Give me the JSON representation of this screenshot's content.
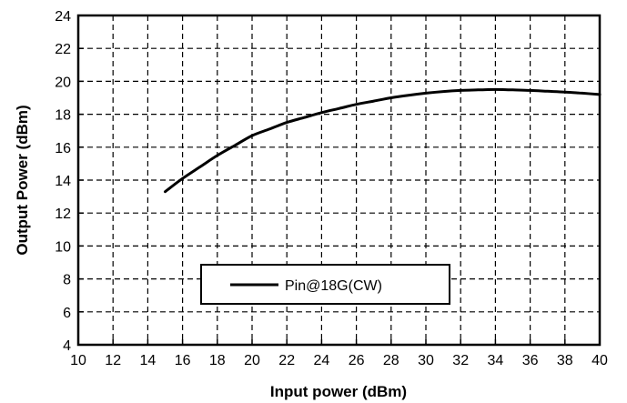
{
  "chart_data": {
    "type": "line",
    "title": "",
    "xlabel": "Input power (dBm)",
    "ylabel": "Output Power (dBm)",
    "xlim": [
      10,
      40
    ],
    "ylim": [
      4,
      24
    ],
    "xticks": [
      10,
      12,
      14,
      16,
      18,
      20,
      22,
      24,
      26,
      28,
      30,
      32,
      34,
      36,
      38,
      40
    ],
    "yticks": [
      4,
      6,
      8,
      10,
      12,
      14,
      16,
      18,
      20,
      22,
      24
    ],
    "grid": true,
    "grid_style": "dashed",
    "legend_position": "lower-center",
    "series": [
      {
        "name": "Pin@18G(CW)",
        "color": "#000000",
        "x": [
          15,
          16,
          17,
          18,
          19,
          20,
          21,
          22,
          23,
          24,
          25,
          26,
          27,
          28,
          29,
          30,
          31,
          32,
          33,
          34,
          35,
          36,
          37,
          38,
          39,
          40
        ],
        "y": [
          13.3,
          14.1,
          14.8,
          15.5,
          16.1,
          16.7,
          17.1,
          17.5,
          17.8,
          18.1,
          18.35,
          18.6,
          18.8,
          19.0,
          19.15,
          19.28,
          19.38,
          19.45,
          19.48,
          19.5,
          19.48,
          19.45,
          19.4,
          19.35,
          19.28,
          19.2
        ]
      }
    ]
  }
}
